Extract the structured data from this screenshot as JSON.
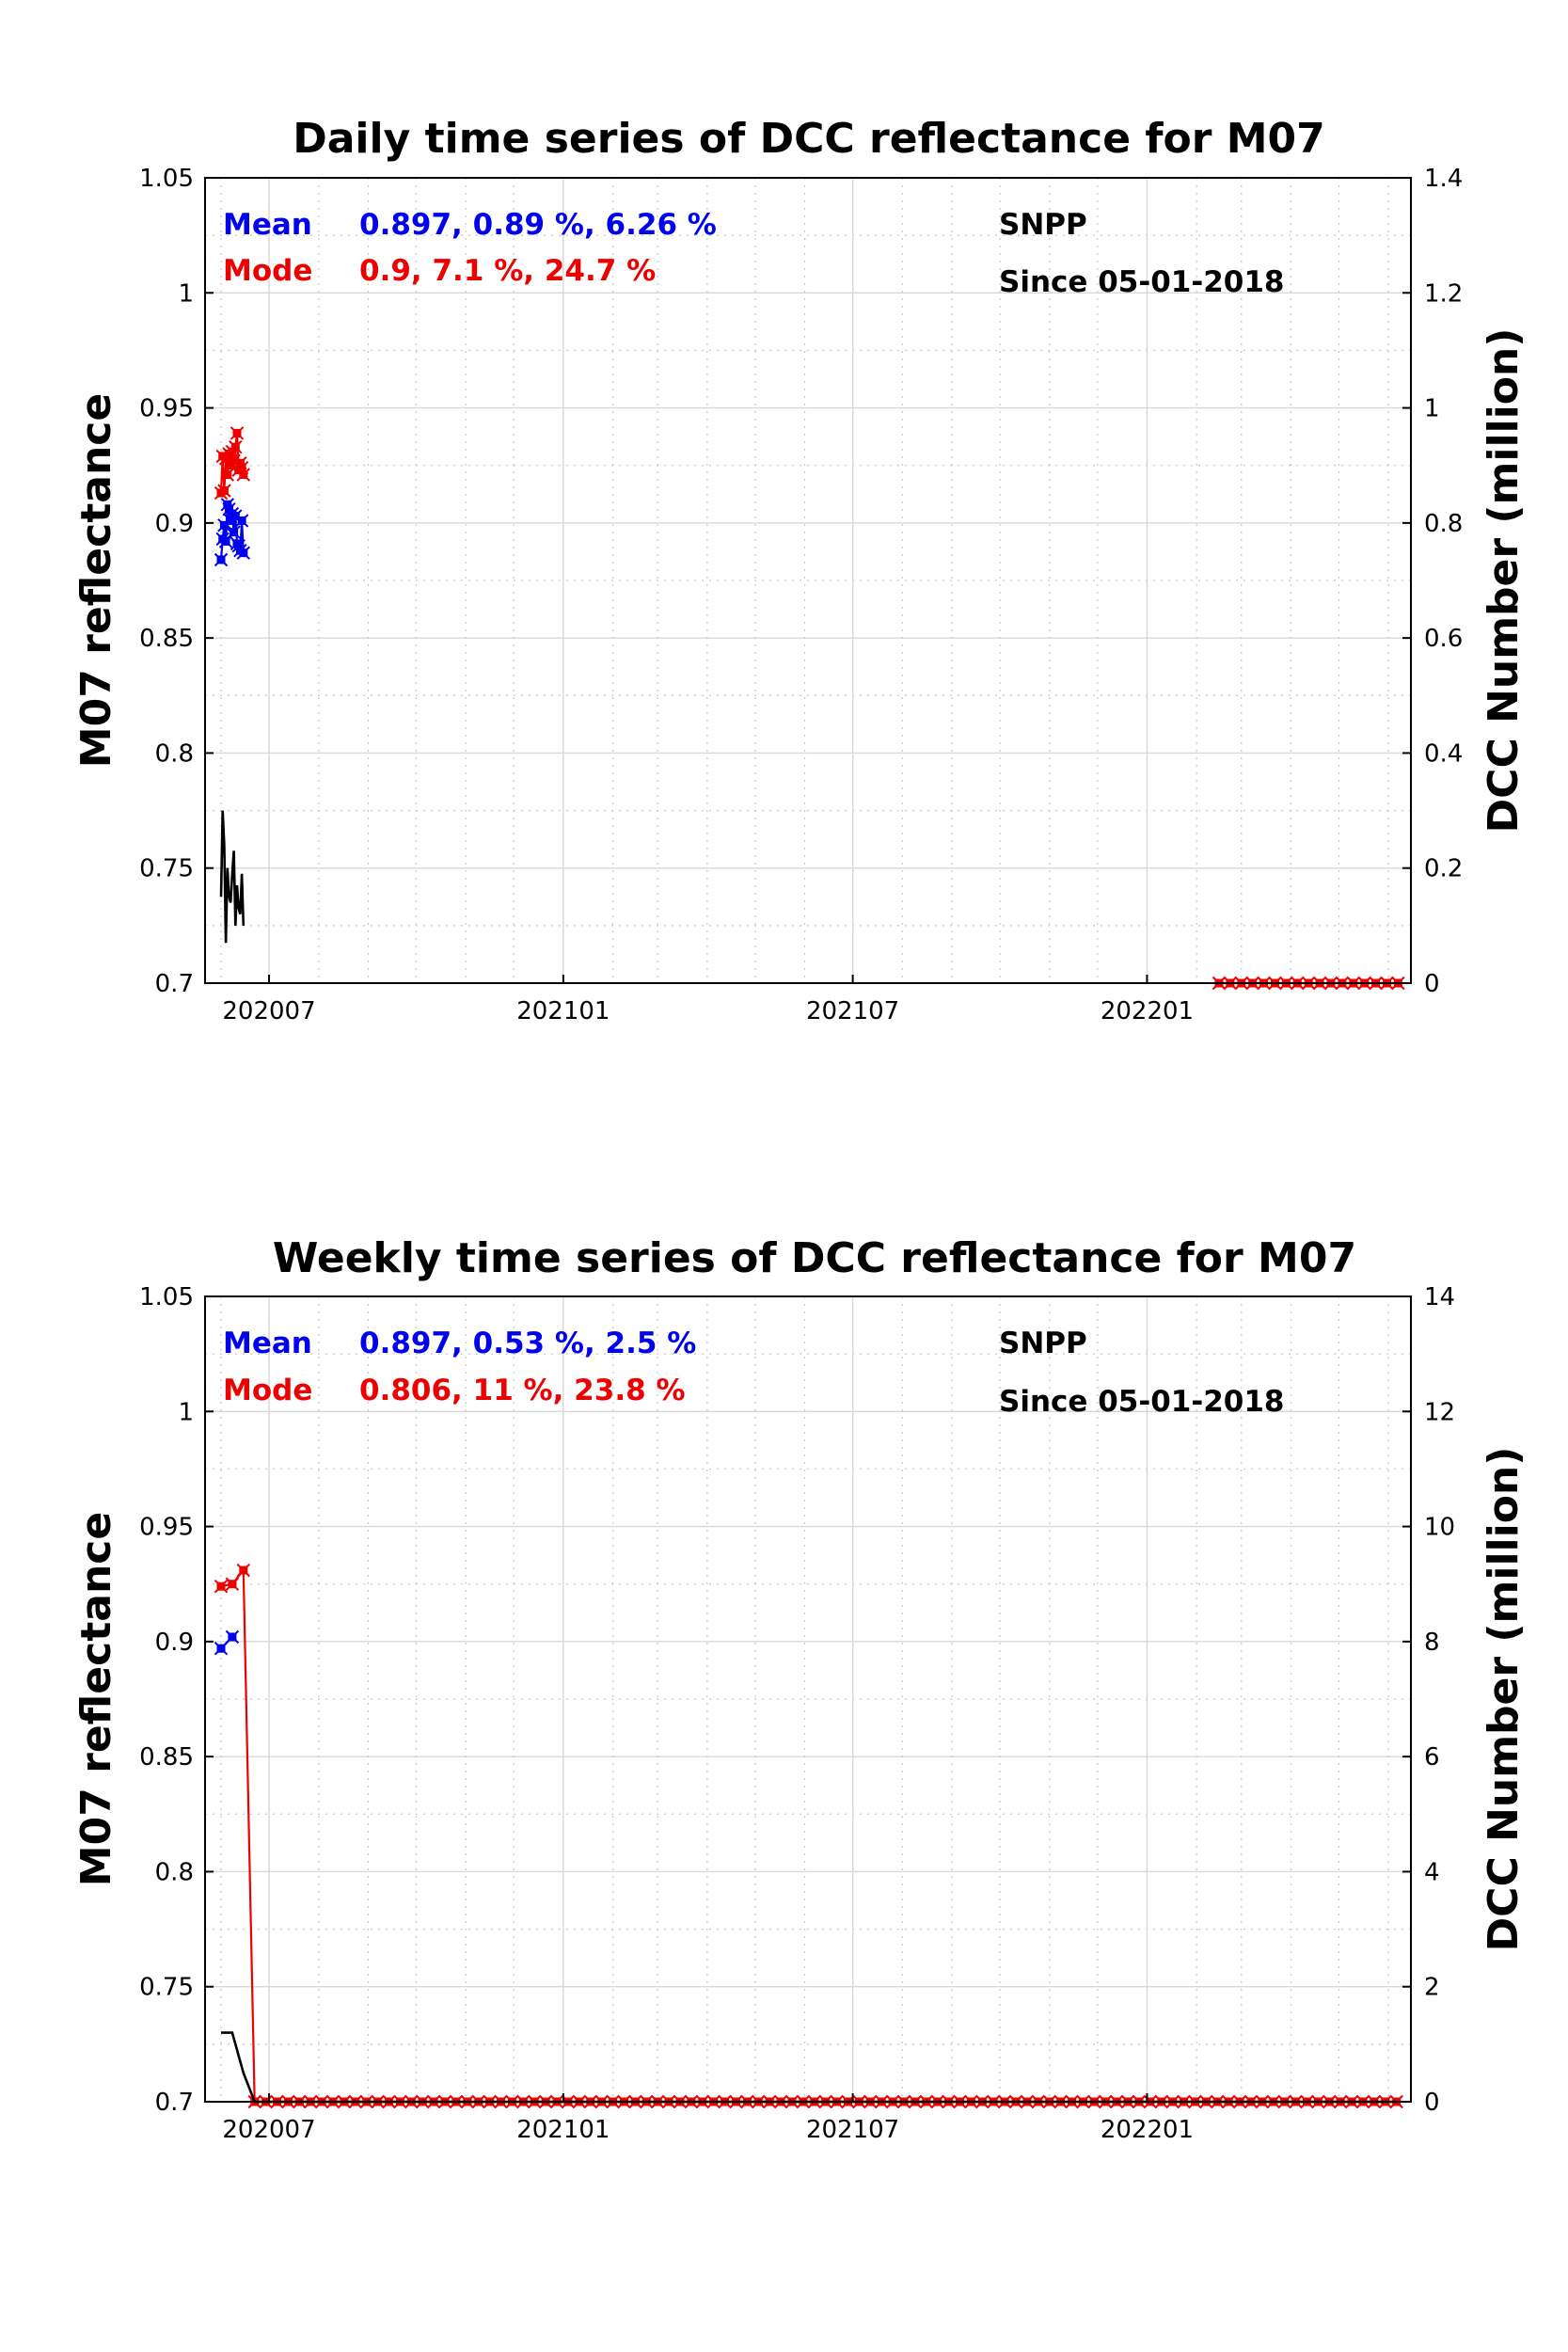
{
  "colors": {
    "mean": "#0000ee",
    "mode": "#ee0000",
    "count": "#000000"
  },
  "chart_data": [
    {
      "type": "line",
      "title": "Daily time series of DCC reflectance for M07",
      "ylabel": "M07 reflectance",
      "y2label": "DCC Number (million)",
      "ylim": [
        0.7,
        1.05
      ],
      "y2lim": [
        0,
        1.4
      ],
      "xlim": [
        "2020-05-22",
        "2022-06-15"
      ],
      "y_ticks": [
        "0.7",
        "0.75",
        "0.8",
        "0.85",
        "0.9",
        "0.95",
        "1",
        "1.05"
      ],
      "y2_ticks": [
        "0",
        "0.2",
        "0.4",
        "0.6",
        "0.8",
        "1",
        "1.2",
        "1.4"
      ],
      "x_ticks": [
        {
          "label": "202007",
          "date": "2020-07-01"
        },
        {
          "label": "202101",
          "date": "2021-01-01"
        },
        {
          "label": "202107",
          "date": "2021-07-01"
        },
        {
          "label": "202201",
          "date": "2022-01-01"
        }
      ],
      "grid": true,
      "annotations": {
        "mean_label": "Mean",
        "mean_stats": "0.897, 0.89 %, 6.26 %",
        "mode_label": "Mode",
        "mode_stats": "0.9, 7.1 %, 24.7 %",
        "satellite": "SNPP",
        "since": "Since 05-01-2018"
      },
      "series": [
        {
          "name": "Mean",
          "axis": "left",
          "color": "#0000ee",
          "marker": true,
          "x": [
            "2020-06-01",
            "2020-06-02",
            "2020-06-03",
            "2020-06-04",
            "2020-06-05",
            "2020-06-06",
            "2020-06-07",
            "2020-06-08",
            "2020-06-09",
            "2020-06-10",
            "2020-06-11",
            "2020-06-12",
            "2020-06-13",
            "2020-06-14",
            "2020-06-15"
          ],
          "values": [
            0.884,
            0.893,
            0.899,
            0.892,
            0.908,
            0.906,
            0.901,
            0.904,
            0.896,
            0.903,
            0.891,
            0.89,
            0.888,
            0.901,
            0.887
          ]
        },
        {
          "name": "Mode",
          "axis": "left",
          "color": "#ee0000",
          "marker": true,
          "x": [
            "2020-06-01",
            "2020-06-02",
            "2020-06-03",
            "2020-06-04",
            "2020-06-05",
            "2020-06-06",
            "2020-06-07",
            "2020-06-08",
            "2020-06-09",
            "2020-06-10",
            "2020-06-11",
            "2020-06-12",
            "2020-06-13",
            "2020-06-14",
            "2020-06-15"
          ],
          "values": [
            0.913,
            0.929,
            0.914,
            0.928,
            0.921,
            0.93,
            0.925,
            0.931,
            0.927,
            0.933,
            0.939,
            0.923,
            0.926,
            0.924,
            0.921
          ]
        },
        {
          "name": "Mode",
          "axis": "left",
          "color": "#ee0000",
          "marker": true,
          "x": [
            "2022-02-15",
            "2022-02-22",
            "2022-03-01",
            "2022-03-08",
            "2022-03-15",
            "2022-03-22",
            "2022-03-29",
            "2022-04-05",
            "2022-04-12",
            "2022-04-19",
            "2022-04-26",
            "2022-05-03",
            "2022-05-10",
            "2022-05-17",
            "2022-05-24",
            "2022-05-31",
            "2022-06-07"
          ],
          "values": [
            0.7,
            0.7,
            0.7,
            0.7,
            0.7,
            0.7,
            0.7,
            0.7,
            0.7,
            0.7,
            0.7,
            0.7,
            0.7,
            0.7,
            0.7,
            0.7,
            0.7
          ]
        },
        {
          "name": "DCC Number",
          "axis": "right",
          "color": "#000000",
          "marker": false,
          "x": [
            "2020-06-01",
            "2020-06-02",
            "2020-06-03",
            "2020-06-04",
            "2020-06-05",
            "2020-06-06",
            "2020-06-07",
            "2020-06-08",
            "2020-06-09",
            "2020-06-10",
            "2020-06-11",
            "2020-06-12",
            "2020-06-13",
            "2020-06-14",
            "2020-06-15"
          ],
          "values": [
            0.15,
            0.3,
            0.24,
            0.07,
            0.2,
            0.15,
            0.14,
            0.19,
            0.23,
            0.1,
            0.17,
            0.13,
            0.12,
            0.19,
            0.1
          ]
        }
      ]
    },
    {
      "type": "line",
      "title": "Weekly time series of DCC reflectance for M07",
      "ylabel": "M07 reflectance",
      "y2label": "DCC Number (million)",
      "ylim": [
        0.7,
        1.05
      ],
      "y2lim": [
        0,
        14
      ],
      "xlim": [
        "2020-05-22",
        "2022-06-15"
      ],
      "y_ticks": [
        "0.7",
        "0.75",
        "0.8",
        "0.85",
        "0.9",
        "0.95",
        "1",
        "1.05"
      ],
      "y2_ticks": [
        "0",
        "2",
        "4",
        "6",
        "8",
        "10",
        "12",
        "14"
      ],
      "x_ticks": [
        {
          "label": "202007",
          "date": "2020-07-01"
        },
        {
          "label": "202101",
          "date": "2021-01-01"
        },
        {
          "label": "202107",
          "date": "2021-07-01"
        },
        {
          "label": "202201",
          "date": "2022-01-01"
        }
      ],
      "grid": true,
      "annotations": {
        "mean_label": "Mean",
        "mean_stats": "0.897, 0.53 %, 2.5 %",
        "mode_label": "Mode",
        "mode_stats": "0.806, 11 %, 23.8 %",
        "satellite": "SNPP",
        "since": "Since 05-01-2018"
      },
      "series": [
        {
          "name": "Mean",
          "axis": "left",
          "color": "#0000ee",
          "marker": true,
          "x": [
            "2020-06-01",
            "2020-06-08"
          ],
          "values": [
            0.897,
            0.902
          ]
        },
        {
          "name": "Mode",
          "axis": "left",
          "color": "#ee0000",
          "marker": true,
          "weekly_start": "2020-06-01",
          "values_head": [
            0.924,
            0.925,
            0.931
          ],
          "values_tail_value": 0.7,
          "tail_end": "2022-06-08"
        },
        {
          "name": "DCC Number",
          "axis": "right",
          "color": "#000000",
          "marker": false,
          "weekly_start": "2020-06-01",
          "values_head": [
            1.2,
            1.2,
            0.5
          ],
          "values_tail_value": 0,
          "tail_end": "2022-06-08"
        }
      ]
    }
  ]
}
